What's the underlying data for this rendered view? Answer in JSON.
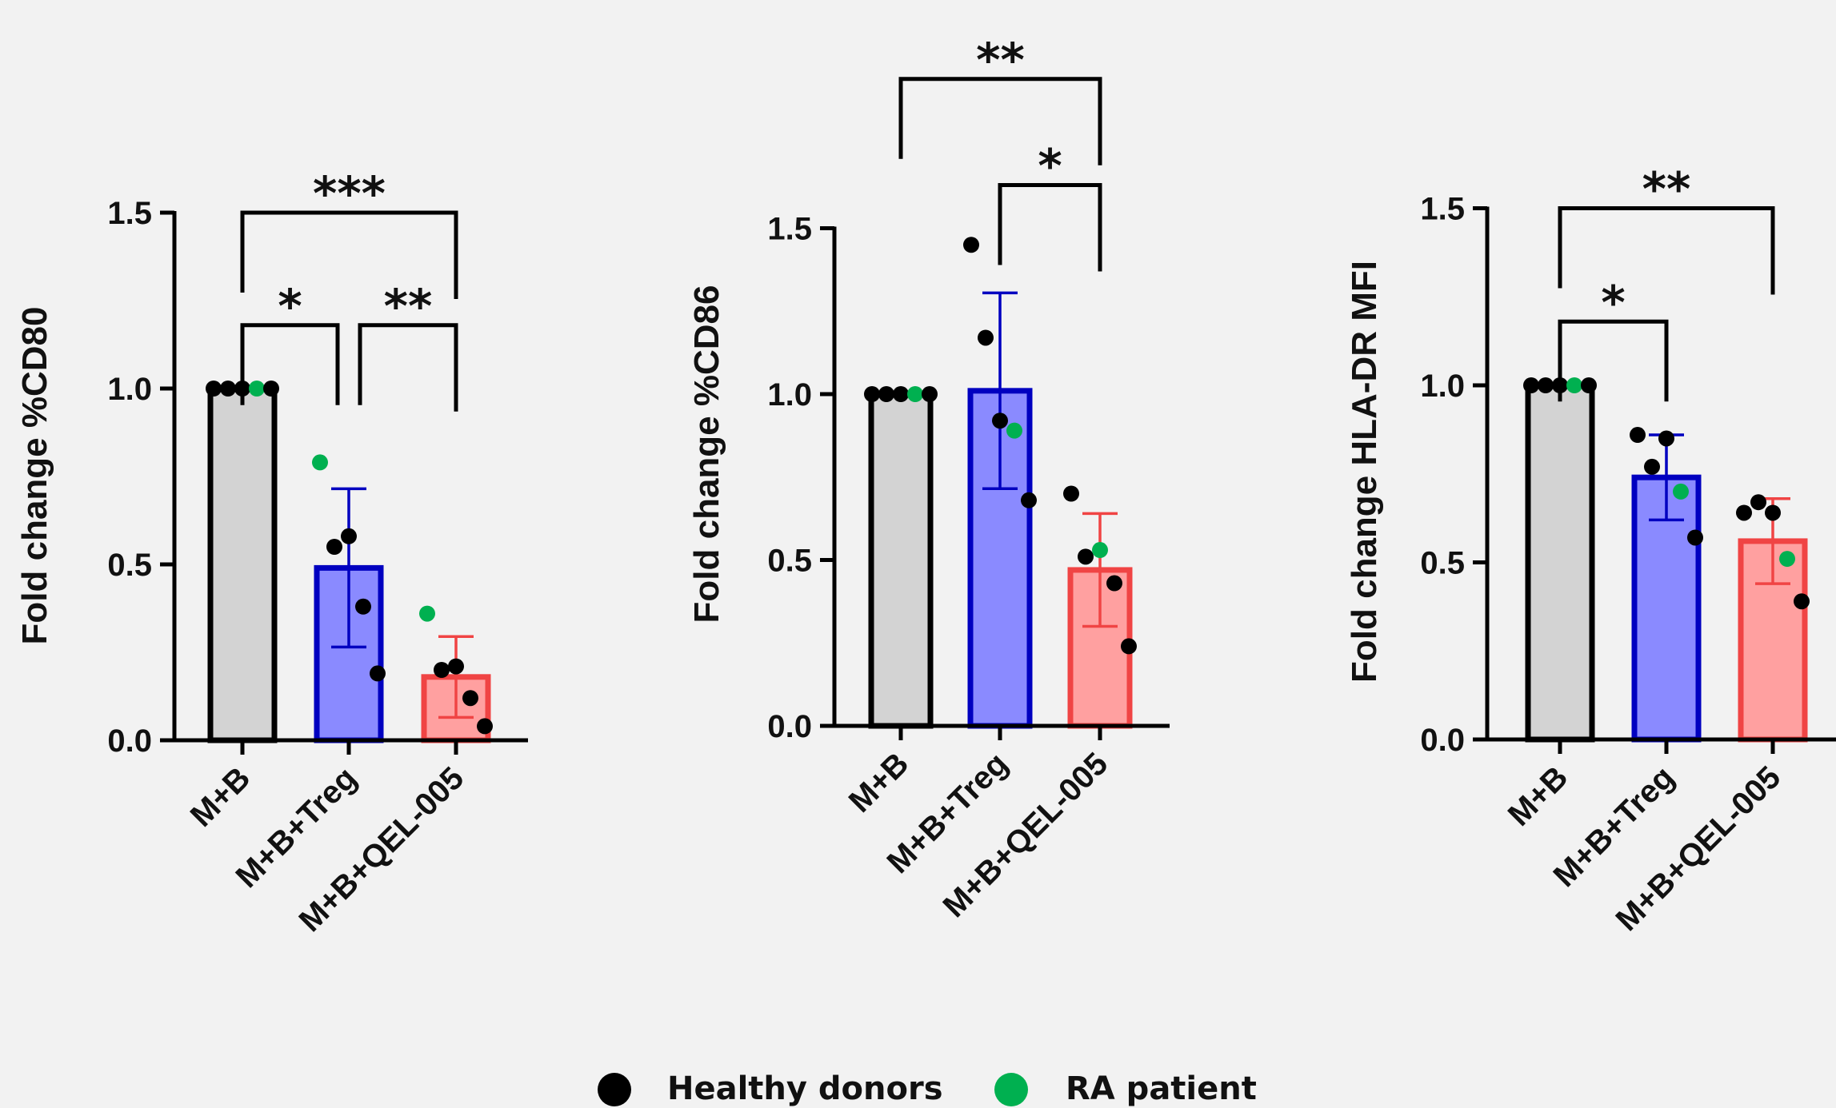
{
  "legend": {
    "items": [
      {
        "label": "Healthy donors",
        "color": "#000000"
      },
      {
        "label": "RA patient",
        "color": "#00b050"
      }
    ]
  },
  "colors": {
    "mb": "#d3d3d3",
    "treg_fill": "#8a8aff",
    "treg_edge": "#0000c0",
    "qel_fill": "#ffa0a0",
    "qel_edge": "#f04444"
  },
  "chart_data": [
    {
      "type": "bar",
      "ylabel": "Fold change %CD80",
      "ylim": [
        0,
        1.5
      ],
      "yticks": [
        "0.0",
        "0.5",
        "1.0",
        "1.5"
      ],
      "categories": [
        "M+B",
        "M+B+Treg",
        "M+B+QEL-005"
      ],
      "values": [
        1.0,
        0.49,
        0.18
      ],
      "errors": [
        0.0,
        0.225,
        0.115
      ],
      "points": [
        [
          {
            "y": 1.0,
            "group": "healthy"
          },
          {
            "y": 1.0,
            "group": "healthy"
          },
          {
            "y": 1.0,
            "group": "healthy"
          },
          {
            "y": 1.0,
            "group": "ra"
          },
          {
            "y": 1.0,
            "group": "healthy"
          }
        ],
        [
          {
            "y": 0.79,
            "group": "ra"
          },
          {
            "y": 0.55,
            "group": "healthy"
          },
          {
            "y": 0.58,
            "group": "healthy"
          },
          {
            "y": 0.38,
            "group": "healthy"
          },
          {
            "y": 0.19,
            "group": "healthy"
          }
        ],
        [
          {
            "y": 0.36,
            "group": "ra"
          },
          {
            "y": 0.2,
            "group": "healthy"
          },
          {
            "y": 0.21,
            "group": "healthy"
          },
          {
            "y": 0.12,
            "group": "healthy"
          },
          {
            "y": 0.04,
            "group": "healthy"
          }
        ]
      ],
      "comparisons": [
        {
          "from": 0,
          "to": 2,
          "label": "***",
          "top": 1.5
        },
        {
          "from": 0,
          "to": 1,
          "label": "*",
          "top": 1.18
        },
        {
          "from": 1,
          "to": 2,
          "label": "**",
          "top": 1.18
        }
      ]
    },
    {
      "type": "bar",
      "ylabel": "Fold change %CD86",
      "ylim": [
        0,
        1.5
      ],
      "yticks": [
        "0.0",
        "0.5",
        "1.0",
        "1.5"
      ],
      "categories": [
        "M+B",
        "M+B+Treg",
        "M+B+QEL-005"
      ],
      "values": [
        1.0,
        1.01,
        0.47
      ],
      "errors": [
        0.0,
        0.295,
        0.17
      ],
      "points": [
        [
          {
            "y": 1.0,
            "group": "healthy"
          },
          {
            "y": 1.0,
            "group": "healthy"
          },
          {
            "y": 1.0,
            "group": "healthy"
          },
          {
            "y": 1.0,
            "group": "ra"
          },
          {
            "y": 1.0,
            "group": "healthy"
          }
        ],
        [
          {
            "y": 1.45,
            "group": "healthy"
          },
          {
            "y": 1.17,
            "group": "healthy"
          },
          {
            "y": 0.92,
            "group": "healthy"
          },
          {
            "y": 0.89,
            "group": "ra"
          },
          {
            "y": 0.68,
            "group": "healthy"
          }
        ],
        [
          {
            "y": 0.7,
            "group": "healthy"
          },
          {
            "y": 0.51,
            "group": "healthy"
          },
          {
            "y": 0.53,
            "group": "ra"
          },
          {
            "y": 0.43,
            "group": "healthy"
          },
          {
            "y": 0.24,
            "group": "healthy"
          }
        ]
      ],
      "comparisons": [
        {
          "from": 0,
          "to": 2,
          "label": "**",
          "top": 1.95
        },
        {
          "from": 1,
          "to": 2,
          "label": "*",
          "top": 1.63
        }
      ]
    },
    {
      "type": "bar",
      "ylabel": "Fold change HLA-DR MFI",
      "ylim": [
        0,
        1.5
      ],
      "yticks": [
        "0.0",
        "0.5",
        "1.0",
        "1.5"
      ],
      "categories": [
        "M+B",
        "M+B+Treg",
        "M+B+QEL-005"
      ],
      "values": [
        1.0,
        0.74,
        0.56
      ],
      "errors": [
        0.0,
        0.12,
        0.12
      ],
      "points": [
        [
          {
            "y": 1.0,
            "group": "healthy"
          },
          {
            "y": 1.0,
            "group": "healthy"
          },
          {
            "y": 1.0,
            "group": "healthy"
          },
          {
            "y": 1.0,
            "group": "ra"
          },
          {
            "y": 1.0,
            "group": "healthy"
          }
        ],
        [
          {
            "y": 0.86,
            "group": "healthy"
          },
          {
            "y": 0.77,
            "group": "healthy"
          },
          {
            "y": 0.85,
            "group": "healthy"
          },
          {
            "y": 0.7,
            "group": "ra"
          },
          {
            "y": 0.57,
            "group": "healthy"
          }
        ],
        [
          {
            "y": 0.64,
            "group": "healthy"
          },
          {
            "y": 0.67,
            "group": "healthy"
          },
          {
            "y": 0.64,
            "group": "healthy"
          },
          {
            "y": 0.51,
            "group": "ra"
          },
          {
            "y": 0.39,
            "group": "healthy"
          }
        ]
      ],
      "comparisons": [
        {
          "from": 0,
          "to": 2,
          "label": "**",
          "top": 1.5
        },
        {
          "from": 0,
          "to": 1,
          "label": "*",
          "top": 1.18
        }
      ]
    }
  ]
}
